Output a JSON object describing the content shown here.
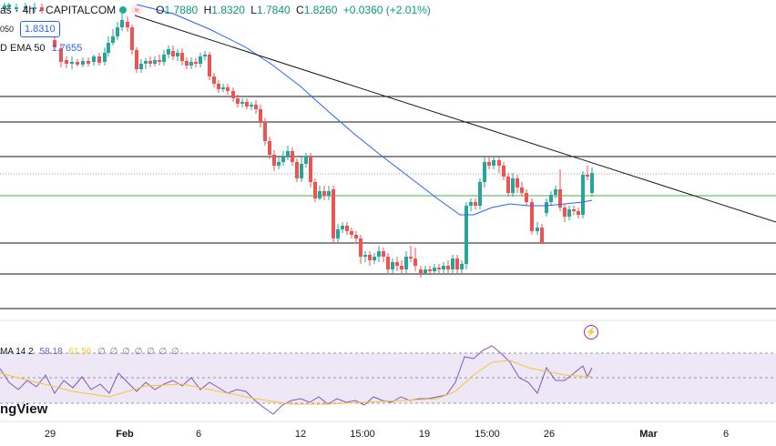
{
  "header": {
    "symbol_fragment": "as",
    "interval": "4h",
    "source": "CAPITALCOM",
    "ohlc": {
      "open_label": "O",
      "open": "1.7880",
      "high_label": "H",
      "high": "1.8320",
      "low_label": "L",
      "low": "1.7840",
      "close_label": "C",
      "close": "1.8260",
      "change": "+0.0360 (+2.01%)"
    },
    "price_tag": "1.8310",
    "tag_50": "050"
  },
  "indicators": {
    "ema_label": "D EMA 50",
    "ema_value": "1.7655",
    "rsi_label": "MA 14 2",
    "rsi_value": "58.18",
    "rsi_ma_value": "61.56",
    "rsi_placeholders": "∅ ∅ ∅ ∅ ∅ ∅ ∅"
  },
  "branding": {
    "name": "ngView"
  },
  "time_axis": [
    {
      "label": "29",
      "bold": false
    },
    {
      "label": "Feb",
      "bold": true
    },
    {
      "label": "6",
      "bold": false
    },
    {
      "label": "12",
      "bold": false
    },
    {
      "label": "15:00",
      "bold": false
    },
    {
      "label": "19",
      "bold": false
    },
    {
      "label": "15:00",
      "bold": false
    },
    {
      "label": "26",
      "bold": false
    },
    {
      "label": "Mar",
      "bold": true
    },
    {
      "label": "6",
      "bold": false
    }
  ],
  "colors": {
    "up": "#26a69a",
    "down": "#ef5350",
    "ema": "#2962ff",
    "rsi": "#7e57c2",
    "rsi_ma": "#f7c530",
    "rsi_band": "#ede7f6",
    "horizontal_lines": "#131722",
    "green_line": "#4caf50"
  },
  "icons": {
    "alert": "lightning-icon"
  }
}
